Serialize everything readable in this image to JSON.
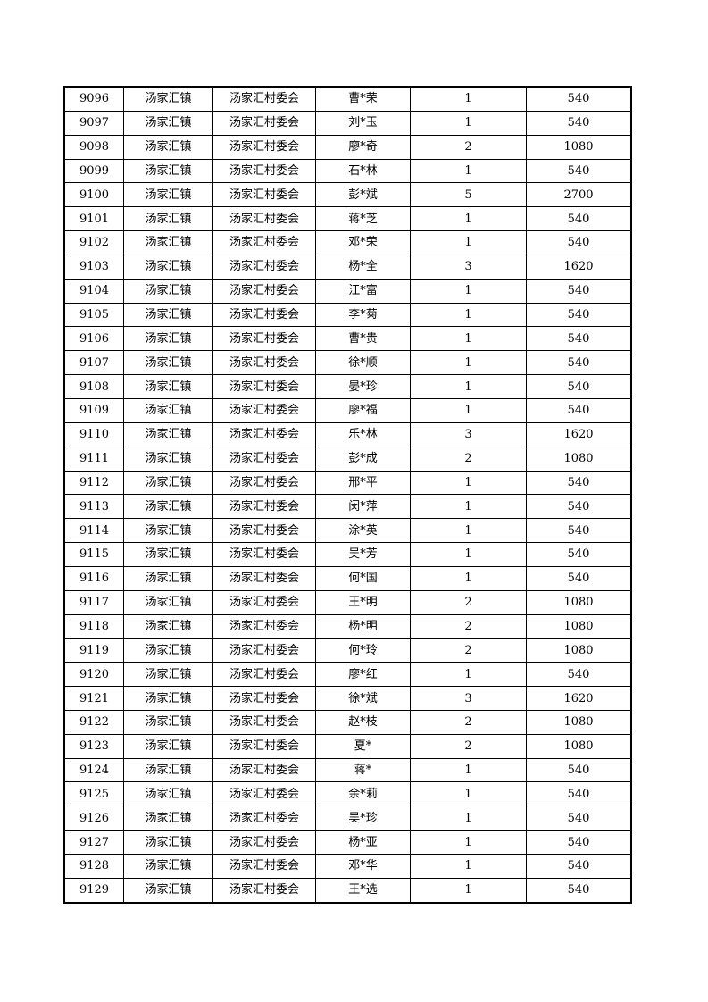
{
  "table": {
    "rows": [
      [
        "9096",
        "汤家汇镇",
        "汤家汇村委会",
        "曹*荣",
        "1",
        "540"
      ],
      [
        "9097",
        "汤家汇镇",
        "汤家汇村委会",
        "刘*玉",
        "1",
        "540"
      ],
      [
        "9098",
        "汤家汇镇",
        "汤家汇村委会",
        "廖*奇",
        "2",
        "1080"
      ],
      [
        "9099",
        "汤家汇镇",
        "汤家汇村委会",
        "石*林",
        "1",
        "540"
      ],
      [
        "9100",
        "汤家汇镇",
        "汤家汇村委会",
        "彭*斌",
        "5",
        "2700"
      ],
      [
        "9101",
        "汤家汇镇",
        "汤家汇村委会",
        "蒋*芝",
        "1",
        "540"
      ],
      [
        "9102",
        "汤家汇镇",
        "汤家汇村委会",
        "邓*荣",
        "1",
        "540"
      ],
      [
        "9103",
        "汤家汇镇",
        "汤家汇村委会",
        "杨*全",
        "3",
        "1620"
      ],
      [
        "9104",
        "汤家汇镇",
        "汤家汇村委会",
        "江*富",
        "1",
        "540"
      ],
      [
        "9105",
        "汤家汇镇",
        "汤家汇村委会",
        "李*菊",
        "1",
        "540"
      ],
      [
        "9106",
        "汤家汇镇",
        "汤家汇村委会",
        "曹*贵",
        "1",
        "540"
      ],
      [
        "9107",
        "汤家汇镇",
        "汤家汇村委会",
        "徐*顺",
        "1",
        "540"
      ],
      [
        "9108",
        "汤家汇镇",
        "汤家汇村委会",
        "晏*珍",
        "1",
        "540"
      ],
      [
        "9109",
        "汤家汇镇",
        "汤家汇村委会",
        "廖*福",
        "1",
        "540"
      ],
      [
        "9110",
        "汤家汇镇",
        "汤家汇村委会",
        "乐*林",
        "3",
        "1620"
      ],
      [
        "9111",
        "汤家汇镇",
        "汤家汇村委会",
        "彭*成",
        "2",
        "1080"
      ],
      [
        "9112",
        "汤家汇镇",
        "汤家汇村委会",
        "邢*平",
        "1",
        "540"
      ],
      [
        "9113",
        "汤家汇镇",
        "汤家汇村委会",
        "闵*萍",
        "1",
        "540"
      ],
      [
        "9114",
        "汤家汇镇",
        "汤家汇村委会",
        "涂*英",
        "1",
        "540"
      ],
      [
        "9115",
        "汤家汇镇",
        "汤家汇村委会",
        "吴*芳",
        "1",
        "540"
      ],
      [
        "9116",
        "汤家汇镇",
        "汤家汇村委会",
        "何*国",
        "1",
        "540"
      ],
      [
        "9117",
        "汤家汇镇",
        "汤家汇村委会",
        "王*明",
        "2",
        "1080"
      ],
      [
        "9118",
        "汤家汇镇",
        "汤家汇村委会",
        "杨*明",
        "2",
        "1080"
      ],
      [
        "9119",
        "汤家汇镇",
        "汤家汇村委会",
        "何*玲",
        "2",
        "1080"
      ],
      [
        "9120",
        "汤家汇镇",
        "汤家汇村委会",
        "廖*红",
        "1",
        "540"
      ],
      [
        "9121",
        "汤家汇镇",
        "汤家汇村委会",
        "徐*斌",
        "3",
        "1620"
      ],
      [
        "9122",
        "汤家汇镇",
        "汤家汇村委会",
        "赵*枝",
        "2",
        "1080"
      ],
      [
        "9123",
        "汤家汇镇",
        "汤家汇村委会",
        "夏*",
        "2",
        "1080"
      ],
      [
        "9124",
        "汤家汇镇",
        "汤家汇村委会",
        "蒋*",
        "1",
        "540"
      ],
      [
        "9125",
        "汤家汇镇",
        "汤家汇村委会",
        "余*莉",
        "1",
        "540"
      ],
      [
        "9126",
        "汤家汇镇",
        "汤家汇村委会",
        "吴*珍",
        "1",
        "540"
      ],
      [
        "9127",
        "汤家汇镇",
        "汤家汇村委会",
        "杨*亚",
        "1",
        "540"
      ],
      [
        "9128",
        "汤家汇镇",
        "汤家汇村委会",
        "邓*华",
        "1",
        "540"
      ],
      [
        "9129",
        "汤家汇镇",
        "汤家汇村委会",
        "王*选",
        "1",
        "540"
      ]
    ]
  }
}
